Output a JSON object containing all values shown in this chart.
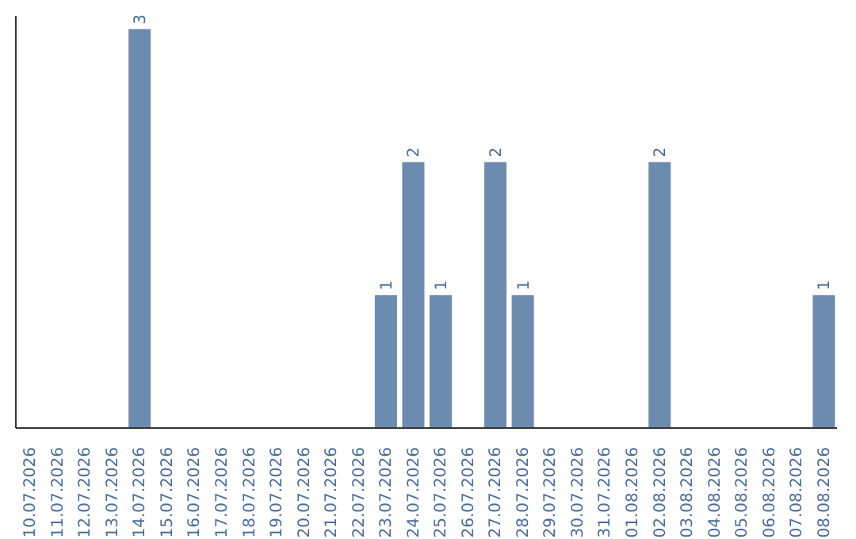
{
  "chart_data": {
    "type": "bar",
    "categories": [
      "10.07.2026",
      "11.07.2026",
      "12.07.2026",
      "13.07.2026",
      "14.07.2026",
      "15.07.2026",
      "16.07.2026",
      "17.07.2026",
      "18.07.2026",
      "19.07.2026",
      "20.07.2026",
      "21.07.2026",
      "22.07.2026",
      "23.07.2026",
      "24.07.2026",
      "25.07.2026",
      "26.07.2026",
      "27.07.2026",
      "28.07.2026",
      "29.07.2026",
      "30.07.2026",
      "31.07.2026",
      "01.08.2026",
      "02.08.2026",
      "03.08.2026",
      "04.08.2026",
      "05.08.2026",
      "06.08.2026",
      "07.08.2026",
      "08.08.2026"
    ],
    "values": [
      0,
      0,
      0,
      0,
      3,
      0,
      0,
      0,
      0,
      0,
      0,
      0,
      0,
      1,
      2,
      1,
      0,
      2,
      1,
      0,
      0,
      0,
      0,
      2,
      0,
      0,
      0,
      0,
      0,
      1
    ],
    "value_labels": [
      null,
      null,
      null,
      null,
      "3",
      null,
      null,
      null,
      null,
      null,
      null,
      null,
      null,
      "1",
      "2",
      "1",
      null,
      "2",
      "1",
      null,
      null,
      null,
      null,
      "2",
      null,
      null,
      null,
      null,
      null,
      "1"
    ],
    "color": "#6b8cae",
    "ylim": [
      0,
      3.1
    ],
    "tick_labels": "x",
    "grid": false,
    "legend": false
  }
}
